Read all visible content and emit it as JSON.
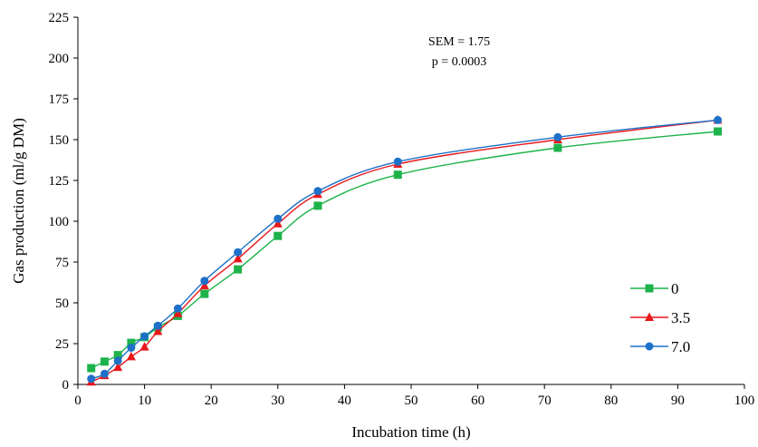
{
  "chart_data": {
    "type": "line",
    "title": "",
    "xlabel": "Incubation time (h)",
    "ylabel": "Gas production (ml/g DM)",
    "xlim": [
      0,
      100
    ],
    "ylim": [
      0,
      225
    ],
    "xticks": [
      0,
      10,
      20,
      30,
      40,
      50,
      60,
      70,
      80,
      90,
      100
    ],
    "yticks": [
      0,
      25,
      50,
      75,
      100,
      125,
      150,
      175,
      200,
      225
    ],
    "grid": false,
    "legend_position": "right",
    "annotations": [
      "SEM = 1.75",
      "p = 0.0003"
    ],
    "series": [
      {
        "name": "0",
        "color": "#1db34a",
        "marker": "square",
        "x": [
          2,
          4,
          6,
          8,
          10,
          12,
          15,
          19,
          24,
          30,
          36,
          48,
          72,
          96
        ],
        "y": [
          10,
          14,
          18,
          25.5,
          29,
          35,
          42,
          55.5,
          70.5,
          91,
          109.5,
          128.5,
          145,
          155
        ]
      },
      {
        "name": "3.5",
        "color": "#e8171c",
        "marker": "triangle",
        "x": [
          2,
          4,
          6,
          8,
          10,
          12,
          15,
          19,
          24,
          30,
          36,
          48,
          72,
          96
        ],
        "y": [
          1.5,
          5.5,
          10.5,
          17,
          23,
          32.5,
          43.5,
          60.5,
          77,
          98.5,
          116.5,
          135,
          150,
          162
        ]
      },
      {
        "name": "7.0",
        "color": "#1e70c8",
        "marker": "circle",
        "x": [
          2,
          4,
          6,
          8,
          10,
          12,
          15,
          19,
          24,
          30,
          36,
          48,
          72,
          96
        ],
        "y": [
          3.5,
          6.5,
          14.5,
          22.5,
          29.5,
          36,
          46.5,
          63.5,
          81,
          101.5,
          118.5,
          136.5,
          151.5,
          162
        ]
      }
    ]
  }
}
